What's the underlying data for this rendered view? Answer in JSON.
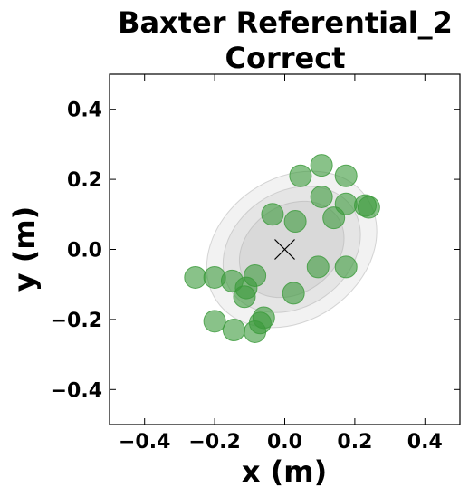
{
  "chart_data": {
    "type": "scatter",
    "title_lines": [
      "Baxter Referential_2",
      "Correct"
    ],
    "xlabel": "x (m)",
    "ylabel": "y (m)",
    "xlim": [
      -0.5,
      0.5
    ],
    "ylim": [
      -0.5,
      0.5
    ],
    "xticks": [
      -0.4,
      -0.2,
      0.0,
      0.2,
      0.4
    ],
    "yticks": [
      -0.4,
      -0.2,
      0.0,
      0.2,
      0.4
    ],
    "xtick_labels": [
      "−0.4",
      "−0.2",
      "0.0",
      "0.2",
      "0.4"
    ],
    "ytick_labels": [
      "−0.4",
      "−0.2",
      "0.0",
      "0.2",
      "0.4"
    ],
    "grid": false,
    "center_marker": {
      "x": 0.0,
      "y": 0.0,
      "marker": "x",
      "color": "#000000"
    },
    "ellipses": [
      {
        "cx": 0.02,
        "cy": 0.0,
        "rx": 0.26,
        "ry": 0.26,
        "angle_deg": 35,
        "color": "#d9d9d9"
      },
      {
        "cx": 0.02,
        "cy": 0.0,
        "rx": 0.21,
        "ry": 0.21,
        "angle_deg": 35,
        "color": "#cfcfcf"
      },
      {
        "cx": 0.02,
        "cy": 0.0,
        "rx": 0.16,
        "ry": 0.16,
        "angle_deg": 35,
        "color": "#c4c4c4"
      }
    ],
    "series": [
      {
        "color": "#3a9a3a",
        "points": [
          {
            "x": 0.045,
            "y": 0.21
          },
          {
            "x": 0.105,
            "y": 0.24
          },
          {
            "x": 0.175,
            "y": 0.21
          },
          {
            "x": 0.105,
            "y": 0.15
          },
          {
            "x": 0.175,
            "y": 0.13
          },
          {
            "x": 0.14,
            "y": 0.09
          },
          {
            "x": 0.23,
            "y": 0.125
          },
          {
            "x": 0.24,
            "y": 0.12
          },
          {
            "x": -0.035,
            "y": 0.1
          },
          {
            "x": 0.03,
            "y": 0.08
          },
          {
            "x": -0.255,
            "y": -0.08
          },
          {
            "x": -0.2,
            "y": -0.08
          },
          {
            "x": -0.15,
            "y": -0.09
          },
          {
            "x": -0.11,
            "y": -0.11
          },
          {
            "x": -0.085,
            "y": -0.075
          },
          {
            "x": -0.115,
            "y": -0.135
          },
          {
            "x": 0.025,
            "y": -0.125
          },
          {
            "x": 0.095,
            "y": -0.05
          },
          {
            "x": 0.175,
            "y": -0.05
          },
          {
            "x": -0.2,
            "y": -0.205
          },
          {
            "x": -0.145,
            "y": -0.23
          },
          {
            "x": -0.085,
            "y": -0.235
          },
          {
            "x": -0.07,
            "y": -0.21
          },
          {
            "x": -0.06,
            "y": -0.195
          }
        ]
      }
    ]
  }
}
